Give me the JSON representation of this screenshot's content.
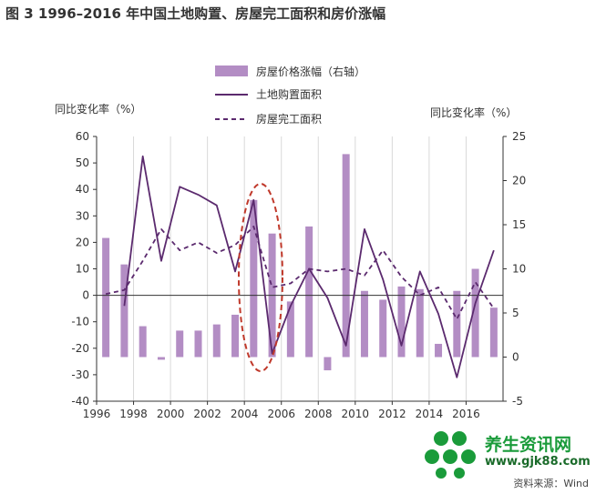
{
  "title": "图 3   1996–2016 年中国土地购置、房屋完工面积和房价涨幅",
  "source": "资料来源：Wind",
  "watermark": {
    "text": "养生资讯网",
    "url": "www.gjk88.com"
  },
  "colors": {
    "bar": "#b38dc4",
    "line_land": "#5b2a6e",
    "line_completed": "#5b2a6e",
    "ellipse": "#c0392b",
    "axis": "#333333"
  },
  "chart_data": {
    "type": "bar",
    "title": "",
    "y_left_label": "同比变化率（%）",
    "y_right_label": "同比变化率（%）",
    "y_left_lim": [
      -40,
      60
    ],
    "y_left_ticks": [
      -40,
      -30,
      -20,
      -10,
      0,
      10,
      20,
      30,
      40,
      50,
      60
    ],
    "y_right_lim": [
      -5,
      25
    ],
    "y_right_ticks": [
      -5,
      0,
      5,
      10,
      15,
      20,
      25
    ],
    "x_lim": [
      1996,
      2018
    ],
    "x_tick_labels": [
      "1996",
      "1998",
      "2000",
      "2002",
      "2004",
      "2006",
      "2008",
      "2010",
      "2012",
      "2014",
      "2016"
    ],
    "legend_position": "top-center",
    "grid": "vertical",
    "series": [
      {
        "name": "房屋价格涨幅（右轴）",
        "kind": "bar",
        "axis": "right",
        "x": [
          1996,
          1997,
          1998,
          1999,
          2000,
          2001,
          2002,
          2003,
          2004,
          2005,
          2006,
          2007,
          2008,
          2009,
          2010,
          2011,
          2012,
          2013,
          2014,
          2015,
          2016,
          2017
        ],
        "values": [
          13.5,
          10.5,
          3.5,
          -0.3,
          3.0,
          3.0,
          3.7,
          4.8,
          17.8,
          14.0,
          6.3,
          14.8,
          -1.5,
          23.0,
          7.5,
          6.5,
          8.0,
          7.7,
          1.5,
          7.5,
          10.0,
          5.6
        ]
      },
      {
        "name": "土地购置面积",
        "kind": "line",
        "axis": "left",
        "x": [
          1997.5,
          1998.5,
          1999.5,
          2000.5,
          2001.5,
          2002.5,
          2003.5,
          2004.5,
          2005.5,
          2006.5,
          2007.5,
          2008.5,
          2009.5,
          2010.5,
          2011.5,
          2012.5,
          2013.5,
          2014.5,
          2015.5,
          2016.5,
          2017.5
        ],
        "values": [
          -4,
          52.5,
          13,
          41,
          38,
          34,
          9,
          36,
          -22,
          -4,
          10,
          -1,
          -19,
          25,
          6,
          -19,
          9,
          -7,
          -31,
          -3,
          17
        ]
      },
      {
        "name": "房屋完工面积",
        "kind": "line",
        "axis": "left",
        "style": "dashed",
        "x": [
          1996.5,
          1997.5,
          1998.5,
          1999.5,
          2000.5,
          2001.5,
          2002.5,
          2003.5,
          2004.5,
          2005.5,
          2006.5,
          2007.5,
          2008.5,
          2009.5,
          2010.5,
          2011.5,
          2012.5,
          2013.5,
          2014.5,
          2015.5,
          2016.5,
          2017.5
        ],
        "values": [
          0.5,
          2,
          13,
          25,
          17,
          20,
          16,
          19,
          26,
          3,
          4.5,
          10,
          9,
          10,
          7.5,
          17,
          7,
          0,
          3,
          -9,
          5,
          -5
        ]
      }
    ]
  }
}
